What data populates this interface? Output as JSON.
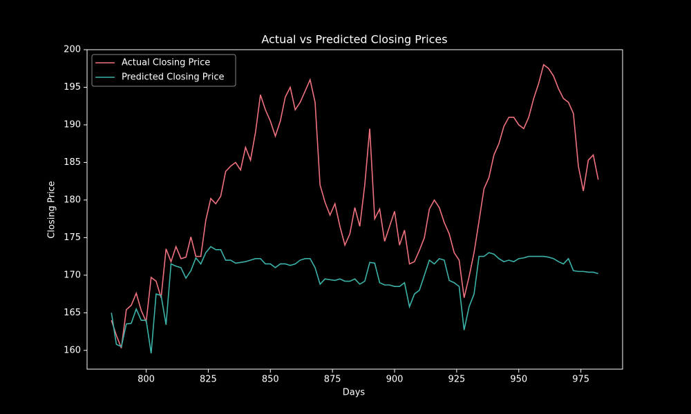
{
  "chart_data": {
    "type": "line",
    "title": "Actual vs Predicted Closing Prices",
    "x_label": "Days",
    "y_label": "Closing Price",
    "x": [
      786,
      788,
      790,
      792,
      794,
      796,
      798,
      800,
      802,
      804,
      806,
      808,
      810,
      812,
      814,
      816,
      818,
      820,
      822,
      824,
      826,
      828,
      830,
      832,
      834,
      836,
      838,
      840,
      842,
      844,
      846,
      848,
      850,
      852,
      854,
      856,
      858,
      860,
      862,
      864,
      866,
      868,
      870,
      872,
      874,
      876,
      878,
      880,
      882,
      884,
      886,
      888,
      890,
      892,
      894,
      896,
      898,
      900,
      902,
      904,
      906,
      908,
      910,
      912,
      914,
      916,
      918,
      920,
      922,
      924,
      926,
      928,
      930,
      932,
      934,
      936,
      938,
      940,
      942,
      944,
      946,
      948,
      950,
      952,
      954,
      956,
      958,
      960,
      962,
      964,
      966,
      968,
      970,
      972,
      974,
      976,
      978,
      980,
      982
    ],
    "series": [
      {
        "name": "Actual Closing Price",
        "color": "#f0727f",
        "values": [
          164.0,
          162.0,
          160.3,
          165.4,
          166.0,
          167.6,
          165.3,
          163.8,
          169.7,
          169.2,
          167.0,
          173.5,
          171.8,
          173.8,
          172.2,
          172.4,
          175.1,
          172.5,
          172.5,
          177.3,
          180.2,
          179.5,
          180.5,
          183.8,
          184.5,
          185.0,
          184.0,
          187.0,
          185.3,
          189.0,
          194.0,
          192.0,
          190.5,
          188.5,
          190.5,
          193.7,
          195.0,
          192.0,
          193.0,
          194.5,
          196.0,
          193.0,
          182.0,
          179.7,
          178.0,
          179.5,
          176.5,
          174.0,
          175.5,
          179.0,
          176.5,
          182.0,
          189.5,
          177.5,
          178.8,
          174.5,
          176.5,
          178.5,
          174.0,
          176.0,
          171.5,
          171.8,
          173.3,
          175.0,
          178.8,
          180.0,
          179.0,
          177.0,
          175.5,
          173.0,
          172.0,
          167.0,
          169.8,
          173.0,
          177.2,
          181.5,
          183.0,
          186.0,
          187.5,
          189.8,
          191.0,
          191.0,
          190.0,
          189.5,
          191.0,
          193.5,
          195.5,
          198.0,
          197.5,
          196.5,
          194.8,
          193.5,
          193.0,
          191.5,
          184.5,
          181.2,
          185.3,
          186.0,
          182.7
        ]
      },
      {
        "name": "Predicted Closing Price",
        "color": "#3cb4aa",
        "values": [
          165.0,
          160.8,
          160.5,
          163.5,
          163.6,
          165.5,
          164.0,
          164.0,
          159.6,
          167.5,
          167.3,
          163.4,
          171.5,
          171.2,
          171.0,
          169.6,
          170.6,
          172.3,
          171.5,
          173.0,
          173.8,
          173.4,
          173.4,
          172.0,
          172.0,
          171.6,
          171.7,
          171.8,
          172.0,
          172.2,
          172.2,
          171.5,
          171.5,
          171.0,
          171.5,
          171.5,
          171.3,
          171.5,
          172.0,
          172.2,
          172.2,
          171.0,
          168.8,
          169.5,
          169.4,
          169.3,
          169.5,
          169.2,
          169.2,
          169.5,
          168.8,
          169.2,
          171.7,
          171.6,
          169.0,
          168.7,
          168.7,
          168.5,
          168.5,
          169.0,
          165.8,
          167.5,
          168.0,
          170.0,
          172.0,
          171.5,
          172.2,
          172.0,
          169.3,
          169.0,
          168.5,
          162.7,
          165.8,
          167.5,
          172.5,
          172.5,
          173.0,
          172.8,
          172.2,
          171.8,
          172.0,
          171.8,
          172.2,
          172.3,
          172.5,
          172.5,
          172.5,
          172.5,
          172.4,
          172.2,
          171.8,
          171.5,
          172.2,
          170.6,
          170.5,
          170.5,
          170.4,
          170.4,
          170.2
        ]
      }
    ],
    "xlim": [
      776.2,
      991.8
    ],
    "ylim": [
      157.5,
      200
    ],
    "xticks": [
      800,
      825,
      850,
      875,
      900,
      925,
      950,
      975
    ],
    "yticks": [
      160,
      165,
      170,
      175,
      180,
      185,
      190,
      195,
      200
    ],
    "legend": "upper left"
  }
}
